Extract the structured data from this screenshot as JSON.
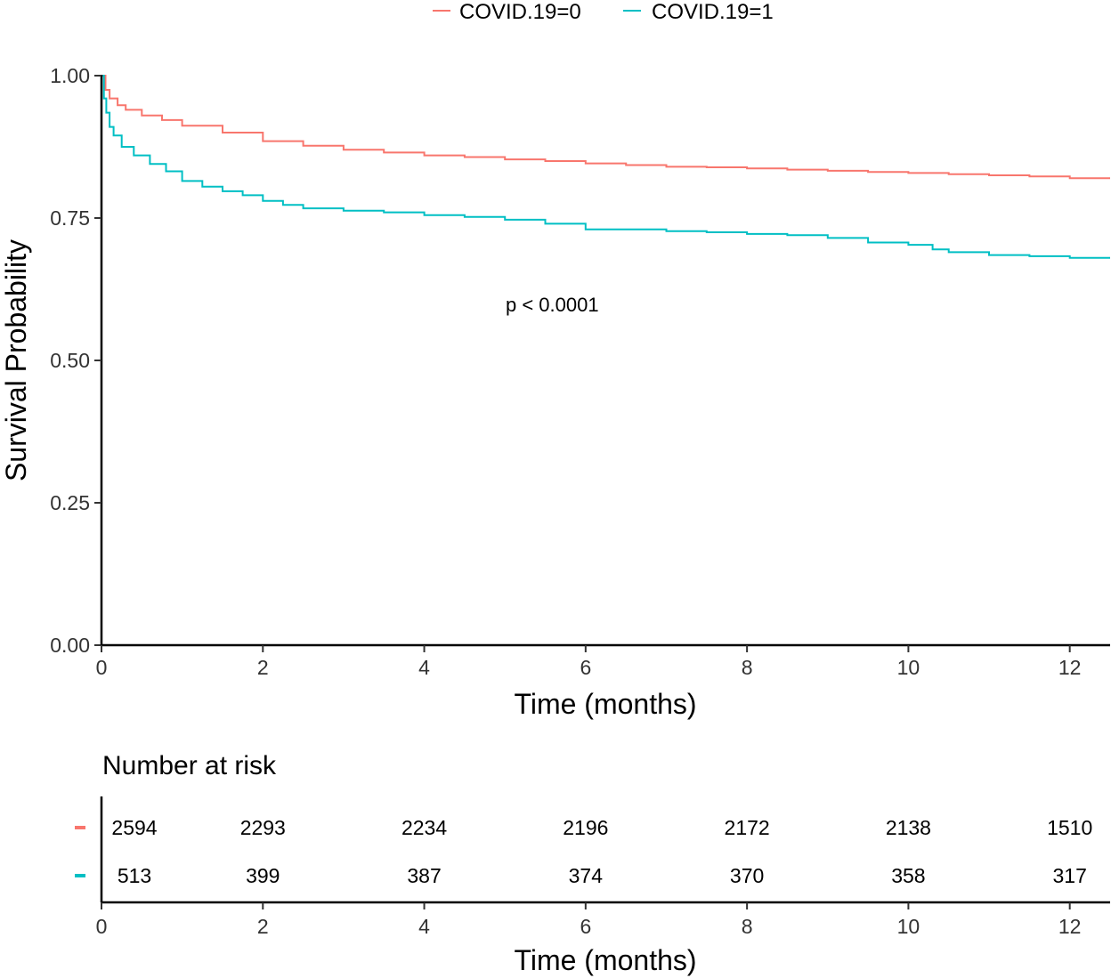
{
  "chart_data": {
    "type": "line",
    "subtype": "kaplan-meier",
    "xlabel": "Time (months)",
    "ylabel": "Survival Probability",
    "xlim": [
      0,
      12.5
    ],
    "ylim": [
      0,
      1
    ],
    "xticks": [
      0,
      2,
      4,
      6,
      8,
      10,
      12
    ],
    "yticks": [
      "0.00",
      "0.25",
      "0.50",
      "0.75",
      "1.00"
    ],
    "legend_position": "top",
    "annotation": "p < 0.0001",
    "series": [
      {
        "name": "COVID.19=0",
        "color": "#F8766D",
        "points": [
          [
            0,
            1.0
          ],
          [
            0.05,
            0.975
          ],
          [
            0.1,
            0.96
          ],
          [
            0.2,
            0.948
          ],
          [
            0.3,
            0.94
          ],
          [
            0.5,
            0.93
          ],
          [
            0.75,
            0.922
          ],
          [
            1.0,
            0.912
          ],
          [
            1.5,
            0.9
          ],
          [
            2.0,
            0.885
          ],
          [
            2.5,
            0.877
          ],
          [
            3.0,
            0.87
          ],
          [
            3.5,
            0.865
          ],
          [
            4.0,
            0.86
          ],
          [
            4.5,
            0.857
          ],
          [
            5.0,
            0.853
          ],
          [
            5.5,
            0.85
          ],
          [
            6.0,
            0.846
          ],
          [
            6.5,
            0.843
          ],
          [
            7.0,
            0.84
          ],
          [
            7.5,
            0.839
          ],
          [
            8.0,
            0.837
          ],
          [
            8.5,
            0.835
          ],
          [
            9.0,
            0.833
          ],
          [
            9.5,
            0.831
          ],
          [
            10.0,
            0.829
          ],
          [
            10.5,
            0.827
          ],
          [
            11.0,
            0.825
          ],
          [
            11.5,
            0.823
          ],
          [
            12.0,
            0.82
          ],
          [
            12.5,
            0.82
          ]
        ]
      },
      {
        "name": "COVID.19=1",
        "color": "#00BFC4",
        "points": [
          [
            0,
            1.0
          ],
          [
            0.03,
            0.96
          ],
          [
            0.06,
            0.935
          ],
          [
            0.1,
            0.91
          ],
          [
            0.15,
            0.895
          ],
          [
            0.25,
            0.875
          ],
          [
            0.4,
            0.86
          ],
          [
            0.6,
            0.845
          ],
          [
            0.8,
            0.832
          ],
          [
            1.0,
            0.815
          ],
          [
            1.25,
            0.805
          ],
          [
            1.5,
            0.797
          ],
          [
            1.75,
            0.79
          ],
          [
            2.0,
            0.78
          ],
          [
            2.25,
            0.773
          ],
          [
            2.5,
            0.767
          ],
          [
            3.0,
            0.763
          ],
          [
            3.5,
            0.76
          ],
          [
            4.0,
            0.755
          ],
          [
            4.5,
            0.752
          ],
          [
            5.0,
            0.747
          ],
          [
            5.5,
            0.74
          ],
          [
            6.0,
            0.73
          ],
          [
            7.0,
            0.727
          ],
          [
            7.5,
            0.725
          ],
          [
            8.0,
            0.722
          ],
          [
            8.5,
            0.72
          ],
          [
            9.0,
            0.715
          ],
          [
            9.5,
            0.707
          ],
          [
            10.0,
            0.703
          ],
          [
            10.3,
            0.695
          ],
          [
            10.5,
            0.69
          ],
          [
            11.0,
            0.685
          ],
          [
            11.5,
            0.683
          ],
          [
            12.0,
            0.68
          ],
          [
            12.5,
            0.68
          ]
        ]
      }
    ],
    "risk_table": {
      "title": "Number at risk",
      "xlabel": "Time (months)",
      "times": [
        0,
        2,
        4,
        6,
        8,
        10,
        12
      ],
      "rows": [
        {
          "color": "#F8766D",
          "values": [
            "2594",
            "2293",
            "2234",
            "2196",
            "2172",
            "2138",
            "1510"
          ]
        },
        {
          "color": "#00BFC4",
          "values": [
            "513",
            "399",
            "387",
            "374",
            "370",
            "358",
            "317"
          ]
        }
      ]
    }
  }
}
